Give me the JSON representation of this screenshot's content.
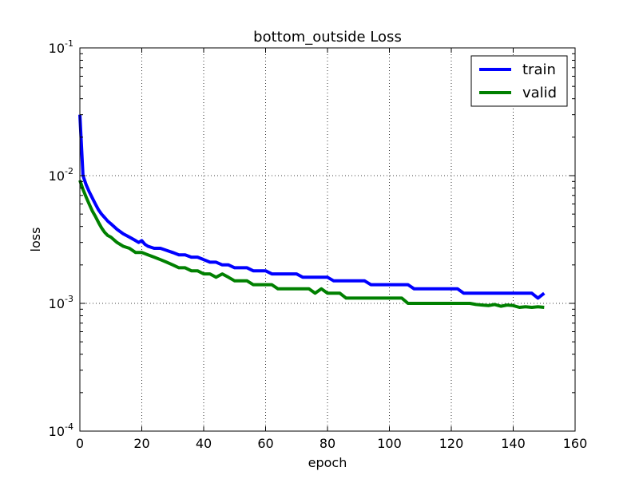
{
  "chart_data": {
    "type": "line",
    "title": "bottom_outside Loss",
    "xlabel": "epoch",
    "ylabel": "loss",
    "yscale": "log",
    "xlim": [
      0,
      160
    ],
    "ylim": [
      0.0001,
      0.1
    ],
    "xticks": [
      0,
      20,
      40,
      60,
      80,
      100,
      120,
      140,
      160
    ],
    "yticks": [
      {
        "value": 0.0001,
        "base": "10",
        "exp": "-4"
      },
      {
        "value": 0.001,
        "base": "10",
        "exp": "-3"
      },
      {
        "value": 0.01,
        "base": "10",
        "exp": "-2"
      },
      {
        "value": 0.1,
        "base": "10",
        "exp": "-1"
      }
    ],
    "grid": true,
    "legend_position": "top-right",
    "series": [
      {
        "name": "train",
        "color": "#0000ff",
        "x": [
          0,
          1,
          2,
          3,
          4,
          5,
          6,
          7,
          8,
          9,
          10,
          12,
          14,
          16,
          18,
          19,
          20,
          21,
          22,
          24,
          26,
          28,
          30,
          32,
          34,
          36,
          38,
          40,
          42,
          44,
          46,
          48,
          50,
          52,
          54,
          56,
          58,
          60,
          62,
          64,
          66,
          68,
          70,
          72,
          74,
          76,
          78,
          80,
          82,
          84,
          86,
          88,
          90,
          92,
          94,
          96,
          98,
          100,
          102,
          104,
          106,
          108,
          110,
          112,
          114,
          116,
          118,
          120,
          122,
          124,
          126,
          128,
          130,
          132,
          134,
          136,
          138,
          140,
          142,
          144,
          146,
          148,
          150
        ],
        "y": [
          0.03,
          0.01,
          0.0085,
          0.0075,
          0.0067,
          0.006,
          0.0054,
          0.005,
          0.0047,
          0.0044,
          0.0042,
          0.0038,
          0.0035,
          0.0033,
          0.0031,
          0.003,
          0.0031,
          0.0029,
          0.0028,
          0.0027,
          0.0027,
          0.0026,
          0.0025,
          0.0024,
          0.0024,
          0.0023,
          0.0023,
          0.0022,
          0.0021,
          0.0021,
          0.002,
          0.002,
          0.0019,
          0.0019,
          0.0019,
          0.0018,
          0.0018,
          0.0018,
          0.0017,
          0.0017,
          0.0017,
          0.0017,
          0.0017,
          0.0016,
          0.0016,
          0.0016,
          0.0016,
          0.0016,
          0.0015,
          0.0015,
          0.0015,
          0.0015,
          0.0015,
          0.0015,
          0.0014,
          0.0014,
          0.0014,
          0.0014,
          0.0014,
          0.0014,
          0.0014,
          0.0013,
          0.0013,
          0.0013,
          0.0013,
          0.0013,
          0.0013,
          0.0013,
          0.0013,
          0.0012,
          0.0012,
          0.0012,
          0.0012,
          0.0012,
          0.0012,
          0.0012,
          0.0012,
          0.0012,
          0.0012,
          0.0012,
          0.0012,
          0.0011,
          0.0012
        ]
      },
      {
        "name": "valid",
        "color": "#008000",
        "x": [
          0,
          1,
          2,
          3,
          4,
          5,
          6,
          7,
          8,
          9,
          10,
          12,
          14,
          16,
          18,
          20,
          22,
          24,
          26,
          28,
          30,
          32,
          34,
          36,
          38,
          40,
          42,
          44,
          46,
          48,
          50,
          52,
          54,
          56,
          58,
          60,
          62,
          64,
          66,
          68,
          70,
          72,
          74,
          76,
          78,
          80,
          82,
          84,
          86,
          88,
          90,
          92,
          94,
          96,
          98,
          100,
          102,
          104,
          106,
          108,
          110,
          112,
          114,
          116,
          118,
          120,
          122,
          124,
          126,
          128,
          130,
          132,
          134,
          136,
          138,
          140,
          142,
          144,
          146,
          148,
          150
        ],
        "y": [
          0.0092,
          0.0078,
          0.0068,
          0.006,
          0.0053,
          0.0048,
          0.0043,
          0.0039,
          0.0036,
          0.0034,
          0.0033,
          0.003,
          0.0028,
          0.0027,
          0.0025,
          0.0025,
          0.0024,
          0.0023,
          0.0022,
          0.0021,
          0.002,
          0.0019,
          0.0019,
          0.0018,
          0.0018,
          0.0017,
          0.0017,
          0.0016,
          0.0017,
          0.0016,
          0.0015,
          0.0015,
          0.0015,
          0.0014,
          0.0014,
          0.0014,
          0.0014,
          0.0013,
          0.0013,
          0.0013,
          0.0013,
          0.0013,
          0.0013,
          0.0012,
          0.0013,
          0.0012,
          0.0012,
          0.0012,
          0.0011,
          0.0011,
          0.0011,
          0.0011,
          0.0011,
          0.0011,
          0.0011,
          0.0011,
          0.0011,
          0.0011,
          0.001,
          0.001,
          0.001,
          0.001,
          0.001,
          0.001,
          0.001,
          0.001,
          0.001,
          0.001,
          0.001,
          0.00098,
          0.00097,
          0.00096,
          0.00098,
          0.00095,
          0.00097,
          0.00096,
          0.00093,
          0.00094,
          0.00093,
          0.00094,
          0.00093
        ]
      }
    ]
  }
}
